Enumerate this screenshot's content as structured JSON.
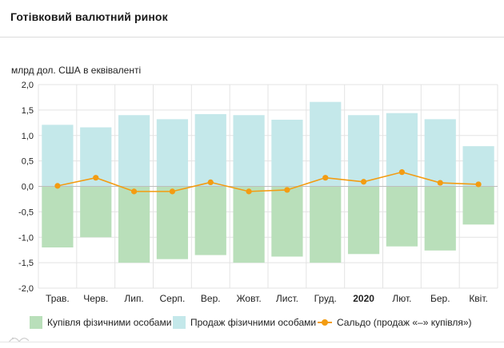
{
  "header": {
    "title": "Готівковий валютний ринок"
  },
  "chart_data": {
    "type": "bar",
    "unit_label": "млрд дол. США в еквіваленті",
    "categories": [
      "Трав.",
      "Черв.",
      "Лип.",
      "Серп.",
      "Вер.",
      "Жовт.",
      "Лист.",
      "Груд.",
      "2020",
      "Лют.",
      "Бер.",
      "Квіт."
    ],
    "bold_categories": [
      "2020"
    ],
    "ylim": [
      -2.0,
      2.0
    ],
    "yticks": [
      "2,0",
      "1,5",
      "1,0",
      "0,5",
      "0,0",
      "-0,5",
      "-1,0",
      "-1,5",
      "-2,0"
    ],
    "ytick_values": [
      2.0,
      1.5,
      1.0,
      0.5,
      0.0,
      -0.5,
      -1.0,
      -1.5,
      -2.0
    ],
    "series": [
      {
        "name": "Купівля фізичними особами",
        "kind": "bar",
        "color": "#b9dfba",
        "values": [
          -1.2,
          -1.0,
          -1.5,
          -1.43,
          -1.35,
          -1.5,
          -1.38,
          -1.5,
          -1.33,
          -1.18,
          -1.26,
          -0.75
        ]
      },
      {
        "name": "Продаж фізичними особами",
        "kind": "bar",
        "color": "#c4e8ea",
        "values": [
          1.21,
          1.16,
          1.4,
          1.32,
          1.42,
          1.4,
          1.31,
          1.66,
          1.4,
          1.44,
          1.32,
          0.79
        ]
      },
      {
        "name": "Сальдо (продаж «–» купівля»)",
        "kind": "line",
        "color": "#f39c12",
        "values": [
          0.01,
          0.17,
          -0.1,
          -0.1,
          0.08,
          -0.1,
          -0.07,
          0.17,
          0.09,
          0.28,
          0.07,
          0.04
        ]
      }
    ],
    "grid": true,
    "legend_position": "bottom"
  }
}
